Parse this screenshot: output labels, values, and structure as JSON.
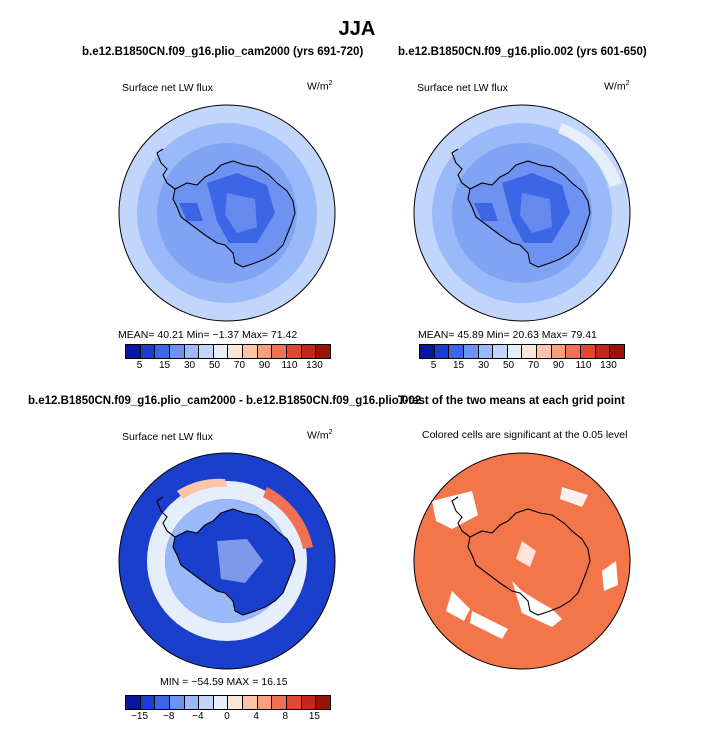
{
  "title": "JJA",
  "panels": {
    "top_left": {
      "case": "b.e12.B1850CN.f09_g16.plio_cam2000 (yrs 691-720)",
      "field": "Surface net LW flux",
      "units": "W/m",
      "units_exp": "2",
      "stats": {
        "mean": "40.21",
        "min": "-1.37",
        "max": "71.42"
      },
      "stats_text": "MEAN=   40.21   Min=   −1.37   Max=   71.42"
    },
    "top_right": {
      "case": "b.e12.B1850CN.f09_g16.plio.002 (yrs 601-650)",
      "field": "Surface net LW flux",
      "units": "W/m",
      "units_exp": "2",
      "stats": {
        "mean": "45.89",
        "min": "20.63",
        "max": "79.41"
      },
      "stats_text": "MEAN=   45.89   Min=   20.63   Max=   79.41"
    },
    "bottom_left": {
      "case": "b.e12.B1850CN.f09_g16.plio_cam2000 - b.e12.B1850CN.f09_g16.plio.002",
      "field": "Surface net LW flux",
      "units": "W/m",
      "units_exp": "2",
      "stats": {
        "min": "-54.59",
        "max": "16.15"
      },
      "stats_text": "MIN = −54.59  MAX =  16.15"
    },
    "bottom_right": {
      "title": "T-test of the two means at each grid point",
      "subtitle": "Colored cells are significant at the 0.05 level"
    }
  },
  "chart_data": [
    {
      "type": "heatmap",
      "name": "top_left",
      "projection": "south polar stereographic",
      "title": "b.e12.B1850CN.f09_g16.plio_cam2000 (yrs 691-720)",
      "variable": "Surface net LW flux",
      "units": "W/m^2",
      "mean": 40.21,
      "min": -1.37,
      "max": 71.42,
      "colorbar_labels": [
        "5",
        "15",
        "30",
        "50",
        "70",
        "90",
        "110",
        "130"
      ],
      "colorbar_colors": [
        "#08179b",
        "#1a3fcd",
        "#3d66e6",
        "#6e92f1",
        "#9ab9f8",
        "#c2d6fb",
        "#e6eefb",
        "#fbe5d6",
        "#fcc5a8",
        "#f99f7c",
        "#f07253",
        "#de4a31",
        "#c02a1c",
        "#961508"
      ]
    },
    {
      "type": "heatmap",
      "name": "top_right",
      "projection": "south polar stereographic",
      "title": "b.e12.B1850CN.f09_g16.plio.002 (yrs 601-650)",
      "variable": "Surface net LW flux",
      "units": "W/m^2",
      "mean": 45.89,
      "min": 20.63,
      "max": 79.41,
      "colorbar_labels": [
        "5",
        "15",
        "30",
        "50",
        "70",
        "90",
        "110",
        "130"
      ],
      "colorbar_colors": [
        "#08179b",
        "#1a3fcd",
        "#3d66e6",
        "#6e92f1",
        "#9ab9f8",
        "#c2d6fb",
        "#e6eefb",
        "#fbe5d6",
        "#fcc5a8",
        "#f99f7c",
        "#f07253",
        "#de4a31",
        "#c02a1c",
        "#961508"
      ]
    },
    {
      "type": "heatmap",
      "name": "bottom_left",
      "projection": "south polar stereographic",
      "title": "b.e12.B1850CN.f09_g16.plio_cam2000 - b.e12.B1850CN.f09_g16.plio.002",
      "variable": "Surface net LW flux difference",
      "units": "W/m^2",
      "min": -54.59,
      "max": 16.15,
      "colorbar_labels": [
        "-15",
        "-8",
        "-4",
        "0",
        "4",
        "8",
        "15"
      ],
      "colorbar_colors": [
        "#08179b",
        "#1a3fcd",
        "#3d66e6",
        "#6e92f1",
        "#9ab9f8",
        "#c2d6fb",
        "#e6eefb",
        "#fbe5d6",
        "#fcc5a8",
        "#f99f7c",
        "#f07253",
        "#de4a31",
        "#c02a1c",
        "#961508"
      ]
    },
    {
      "type": "heatmap",
      "name": "bottom_right",
      "projection": "south polar stereographic",
      "title": "T-test of the two means at each grid point",
      "subtitle": "Colored cells are significant at the 0.05 level",
      "significance_level": 0.05,
      "significant_color": "#f2764a"
    }
  ]
}
